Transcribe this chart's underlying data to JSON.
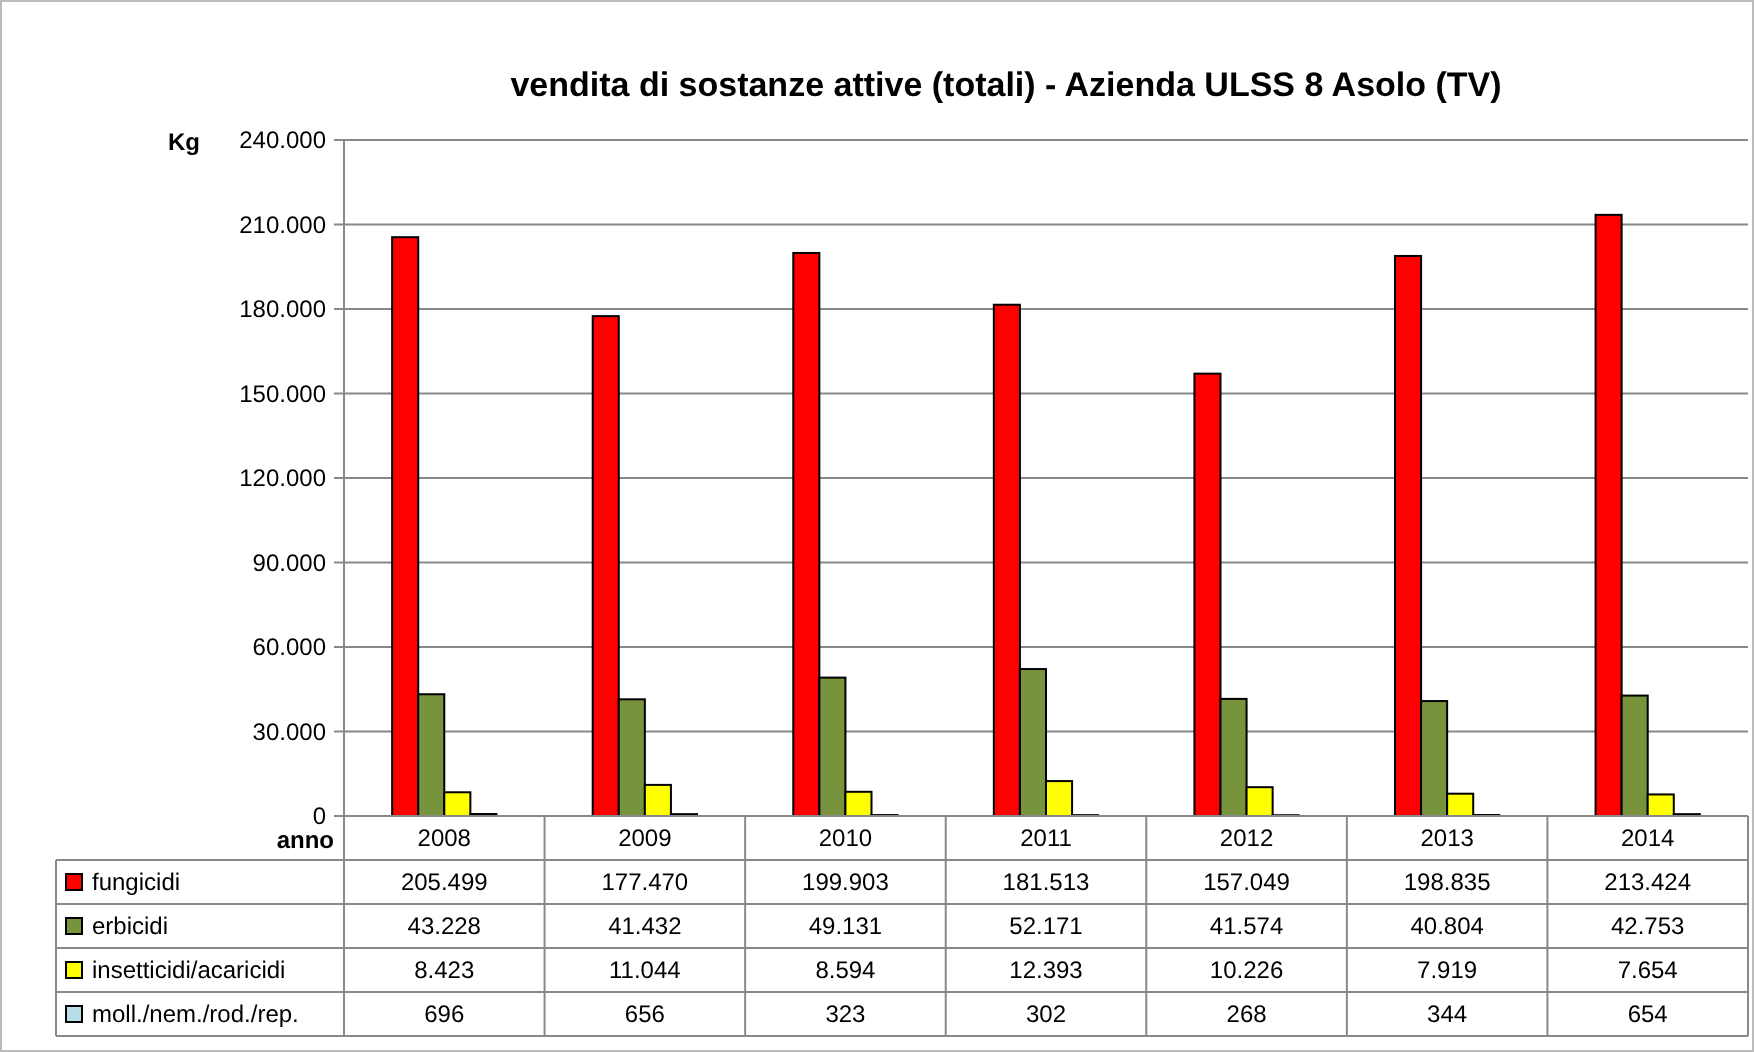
{
  "chart_data": {
    "type": "bar",
    "title": "vendita di sostanze attive (totali) - Azienda ULSS 8  Asolo (TV)",
    "ylabel": "Kg",
    "xlabel": "anno",
    "categories": [
      "2008",
      "2009",
      "2010",
      "2011",
      "2012",
      "2013",
      "2014"
    ],
    "series": [
      {
        "name": "fungicidi",
        "color": "#ff0000",
        "values": [
          205499,
          177470,
          199903,
          181513,
          157049,
          198835,
          213424
        ],
        "value_labels": [
          "205.499",
          "177.470",
          "199.903",
          "181.513",
          "157.049",
          "198.835",
          "213.424"
        ]
      },
      {
        "name": "erbicidi",
        "color": "#77933c",
        "values": [
          43228,
          41432,
          49131,
          52171,
          41574,
          40804,
          42753
        ],
        "value_labels": [
          "43.228",
          "41.432",
          "49.131",
          "52.171",
          "41.574",
          "40.804",
          "42.753"
        ]
      },
      {
        "name": "insetticidi/acaricidi",
        "color": "#ffff00",
        "values": [
          8423,
          11044,
          8594,
          12393,
          10226,
          7919,
          7654
        ],
        "value_labels": [
          "8.423",
          "11.044",
          "8.594",
          "12.393",
          "10.226",
          "7.919",
          "7.654"
        ]
      },
      {
        "name": "moll./nem./rod./rep.",
        "color": "#b7dee8",
        "values": [
          696,
          656,
          323,
          302,
          268,
          344,
          654
        ],
        "value_labels": [
          "696",
          "656",
          "323",
          "302",
          "268",
          "344",
          "654"
        ]
      }
    ],
    "ylim": [
      0,
      240000
    ],
    "yticks": [
      0,
      {
        "value": 30000,
        "label": "30.000"
      },
      {
        "value": 60000,
        "label": "60.000"
      },
      {
        "value": 90000,
        "label": "90.000"
      },
      {
        "value": 120000,
        "label": "120.000"
      },
      {
        "value": 150000,
        "label": "150.000"
      },
      {
        "value": 180000,
        "label": "180.000"
      },
      {
        "value": 210000,
        "label": "210.000"
      },
      {
        "value": 240000,
        "label": "240.000"
      }
    ],
    "grid": "y",
    "legend": "bottom left"
  }
}
